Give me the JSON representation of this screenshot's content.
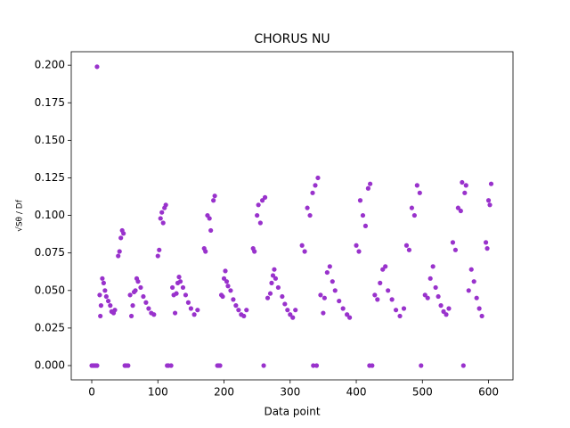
{
  "chart_data": {
    "type": "scatter",
    "title": "CHORUS NU",
    "xlabel": "Data point",
    "ylabel": "√Sθ / Df",
    "color": "#9932cc",
    "x": [
      0,
      2,
      4,
      6,
      8,
      8,
      12,
      13,
      14,
      16,
      18,
      20,
      22,
      25,
      28,
      30,
      33,
      35,
      40,
      42,
      44,
      46,
      48,
      50,
      52,
      55,
      58,
      60,
      62,
      64,
      66,
      68,
      70,
      74,
      78,
      82,
      86,
      90,
      94,
      100,
      102,
      104,
      106,
      108,
      110,
      112,
      114,
      116,
      120,
      122,
      124,
      126,
      128,
      130,
      132,
      134,
      138,
      142,
      146,
      150,
      155,
      160,
      170,
      172,
      175,
      178,
      180,
      184,
      186,
      190,
      192,
      194,
      196,
      198,
      200,
      202,
      204,
      206,
      210,
      214,
      218,
      222,
      226,
      230,
      234,
      244,
      246,
      250,
      252,
      255,
      258,
      262,
      260,
      266,
      270,
      272,
      274,
      276,
      278,
      282,
      288,
      292,
      296,
      300,
      304,
      308,
      318,
      322,
      326,
      330,
      334,
      338,
      342,
      335,
      340,
      346,
      350,
      352,
      356,
      360,
      364,
      368,
      374,
      380,
      386,
      390,
      400,
      404,
      406,
      410,
      414,
      418,
      421,
      420,
      424,
      428,
      432,
      436,
      440,
      444,
      448,
      454,
      460,
      466,
      472,
      476,
      480,
      484,
      488,
      492,
      496,
      498,
      504,
      508,
      512,
      516,
      520,
      524,
      528,
      532,
      536,
      540,
      546,
      550,
      554,
      558,
      560,
      564,
      566,
      562,
      570,
      574,
      578,
      582,
      586,
      590,
      596,
      598,
      600,
      602,
      604
    ],
    "values": [
      0,
      0,
      0,
      0,
      0,
      0.199,
      0.047,
      0.033,
      0.04,
      0.058,
      0.055,
      0.05,
      0.046,
      0.043,
      0.04,
      0.036,
      0.035,
      0.037,
      0.073,
      0.076,
      0.085,
      0.09,
      0.088,
      0,
      0,
      0,
      0.047,
      0.033,
      0.04,
      0.049,
      0.05,
      0.058,
      0.056,
      0.052,
      0.046,
      0.042,
      0.038,
      0.035,
      0.034,
      0.073,
      0.077,
      0.098,
      0.102,
      0.095,
      0.105,
      0.107,
      0,
      0,
      0,
      0.052,
      0.047,
      0.035,
      0.048,
      0.055,
      0.059,
      0.056,
      0.052,
      0.047,
      0.042,
      0.038,
      0.034,
      0.037,
      0.078,
      0.076,
      0.1,
      0.098,
      0.09,
      0.11,
      0.113,
      0,
      0,
      0,
      0.047,
      0.046,
      0.058,
      0.063,
      0.056,
      0.053,
      0.05,
      0.044,
      0.04,
      0.037,
      0.034,
      0.033,
      0.037,
      0.078,
      0.076,
      0.1,
      0.107,
      0.095,
      0.11,
      0.112,
      0,
      0.045,
      0.048,
      0.055,
      0.06,
      0.064,
      0.058,
      0.052,
      0.046,
      0.041,
      0.037,
      0.034,
      0.032,
      0.037,
      0.08,
      0.076,
      0.105,
      0.1,
      0.115,
      0.12,
      0.125,
      0,
      0,
      0.047,
      0.035,
      0.045,
      0.062,
      0.066,
      0.056,
      0.05,
      0.043,
      0.038,
      0.034,
      0.032,
      0.08,
      0.076,
      0.11,
      0.1,
      0.093,
      0.118,
      0.121,
      0,
      0,
      0.047,
      0.044,
      0.055,
      0.064,
      0.066,
      0.05,
      0.044,
      0.037,
      0.033,
      0.038,
      0.08,
      0.077,
      0.105,
      0.1,
      0.12,
      0.115,
      0,
      0.047,
      0.045,
      0.058,
      0.066,
      0.052,
      0.046,
      0.04,
      0.036,
      0.034,
      0.038,
      0.082,
      0.077,
      0.105,
      0.103,
      0.122,
      0.115,
      0.12,
      0,
      0.05,
      0.064,
      0.056,
      0.045,
      0.038,
      0.033,
      0.082,
      0.078,
      0.11,
      0.107,
      0.121
    ],
    "xlim": [
      -31,
      637
    ],
    "ylim": [
      -0.0095,
      0.209
    ],
    "xticks": [
      0,
      100,
      200,
      300,
      400,
      500,
      600
    ],
    "yticks": [
      {
        "value": 0,
        "label": "0.000"
      },
      {
        "value": 0.025,
        "label": "0.025"
      },
      {
        "value": 0.05,
        "label": "0.050"
      },
      {
        "value": 0.075,
        "label": "0.075"
      },
      {
        "value": 0.1,
        "label": "0.100"
      },
      {
        "value": 0.125,
        "label": "0.125"
      },
      {
        "value": 0.15,
        "label": "0.150"
      },
      {
        "value": 0.175,
        "label": "0.175"
      },
      {
        "value": 0.2,
        "label": "0.200"
      }
    ],
    "grid": false
  }
}
